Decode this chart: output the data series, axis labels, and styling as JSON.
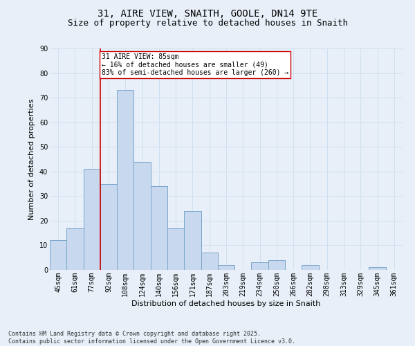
{
  "title_line1": "31, AIRE VIEW, SNAITH, GOOLE, DN14 9TE",
  "title_line2": "Size of property relative to detached houses in Snaith",
  "xlabel": "Distribution of detached houses by size in Snaith",
  "ylabel": "Number of detached properties",
  "categories": [
    "45sqm",
    "61sqm",
    "77sqm",
    "92sqm",
    "108sqm",
    "124sqm",
    "140sqm",
    "156sqm",
    "171sqm",
    "187sqm",
    "203sqm",
    "219sqm",
    "234sqm",
    "250sqm",
    "266sqm",
    "282sqm",
    "298sqm",
    "313sqm",
    "329sqm",
    "345sqm",
    "361sqm"
  ],
  "values": [
    12,
    17,
    41,
    35,
    73,
    44,
    34,
    17,
    24,
    7,
    2,
    0,
    3,
    4,
    0,
    2,
    0,
    0,
    0,
    1,
    0
  ],
  "bar_color": "#c8d9ef",
  "bar_edge_color": "#7aa6cc",
  "grid_color": "#d0dff0",
  "background_color": "#e8eff8",
  "vline_color": "#cc0000",
  "annotation_text": "31 AIRE VIEW: 85sqm\n← 16% of detached houses are smaller (49)\n83% of semi-detached houses are larger (260) →",
  "annotation_box_color": "#ffffff",
  "annotation_box_edge_color": "#cc0000",
  "ylim": [
    0,
    90
  ],
  "yticks": [
    0,
    10,
    20,
    30,
    40,
    50,
    60,
    70,
    80,
    90
  ],
  "footer_line1": "Contains HM Land Registry data © Crown copyright and database right 2025.",
  "footer_line2": "Contains public sector information licensed under the Open Government Licence v3.0.",
  "title_fontsize": 10,
  "subtitle_fontsize": 9,
  "axis_label_fontsize": 8,
  "tick_fontsize": 7,
  "annotation_fontsize": 7,
  "footer_fontsize": 6,
  "vline_pos": 2.5
}
